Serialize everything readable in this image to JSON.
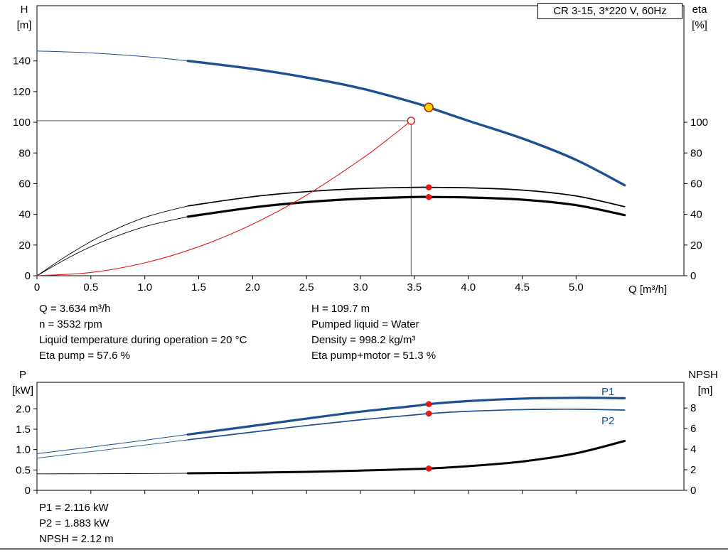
{
  "header": {
    "title_box": "CR 3-15, 3*220 V, 60Hz"
  },
  "axes_labels": {
    "h_top": "H",
    "h_unit": "[m]",
    "eta_top": "eta",
    "eta_unit": "[%]",
    "q_label": "Q [m³/h]",
    "p_top": "P",
    "p_unit": "[kW]",
    "npsh_top": "NPSH",
    "npsh_unit": "[m]"
  },
  "series_labels": {
    "p1": "P1",
    "p2": "P2"
  },
  "colors": {
    "curve_blue": "#1d4f91",
    "red": "#e01818",
    "black": "#000000",
    "yellow": "#ffd300"
  },
  "annotations": {
    "left": [
      "Q = 3.634 m³/h",
      "n = 3532 rpm",
      "Liquid temperature during operation = 20 °C",
      "Eta pump = 57.6 %"
    ],
    "right": [
      "H = 109.7 m",
      "Pumped liquid = Water",
      "Density = 998.2 kg/m³",
      "Eta pump+motor = 51.3 %"
    ],
    "bottom": [
      "P1 = 2.116 kW",
      "P2 = 1.883 kW",
      "NPSH = 2.12 m"
    ]
  },
  "chart_data": [
    {
      "type": "line",
      "name": "qh-eta-chart",
      "title": "CR 3-15, 3*220 V, 60Hz",
      "grid": false,
      "x_axis": {
        "label": "Q [m³/h]",
        "min": 0,
        "max": 6,
        "show_tick_labels": true,
        "ticks": [
          [
            0,
            "0"
          ],
          [
            0.5,
            "0.5"
          ],
          [
            1,
            "1.0"
          ],
          [
            1.5,
            "1.5"
          ],
          [
            2,
            "2.0"
          ],
          [
            2.5,
            "2.5"
          ],
          [
            3,
            "3.0"
          ],
          [
            3.5,
            "3.5"
          ],
          [
            4,
            "4.0"
          ],
          [
            4.5,
            "4.5"
          ],
          [
            5,
            "5.0"
          ]
        ]
      },
      "y_left": {
        "label": "H [m]",
        "min": 0,
        "max": 176,
        "ticks": [
          [
            0,
            "0"
          ],
          [
            20,
            "20"
          ],
          [
            40,
            "40"
          ],
          [
            60,
            "60"
          ],
          [
            80,
            "80"
          ],
          [
            100,
            "100"
          ],
          [
            120,
            "120"
          ],
          [
            140,
            "140"
          ]
        ]
      },
      "y_right": {
        "label": "eta [%]",
        "min": 0,
        "max": 176,
        "ticks": [
          [
            0,
            "0"
          ],
          [
            20,
            "20"
          ],
          [
            40,
            "40"
          ],
          [
            60,
            "60"
          ],
          [
            80,
            "80"
          ],
          [
            100,
            "100"
          ]
        ]
      },
      "series": [
        {
          "id": "h-q-curve",
          "name": "H pump curve",
          "axis": "left",
          "color": "#1d4f91",
          "width": 3.4,
          "thin_until": 1.4,
          "thin_width": 1,
          "points": [
            [
              0,
              146.5
            ],
            [
              0.5,
              145.2
            ],
            [
              1.0,
              142.8
            ],
            [
              1.4,
              140
            ],
            [
              2.0,
              134.8
            ],
            [
              2.5,
              129.2
            ],
            [
              3.0,
              122.2
            ],
            [
              3.5,
              112.8
            ],
            [
              3.634,
              109.7
            ],
            [
              4.0,
              101
            ],
            [
              4.5,
              89.5
            ],
            [
              5.0,
              75.5
            ],
            [
              5.45,
              59
            ]
          ]
        },
        {
          "id": "eta-pump-curve",
          "name": "Eta pump",
          "axis": "right",
          "color": "#000000",
          "width": 1.7,
          "thin_until": 1.4,
          "thin_width": 0.9,
          "points": [
            [
              0,
              0
            ],
            [
              0.3,
              14
            ],
            [
              0.6,
              26
            ],
            [
              1.0,
              38
            ],
            [
              1.4,
              45.5
            ],
            [
              2.0,
              51.5
            ],
            [
              2.5,
              54.8
            ],
            [
              3.0,
              56.8
            ],
            [
              3.5,
              57.6
            ],
            [
              3.634,
              57.6
            ],
            [
              4.0,
              57.3
            ],
            [
              4.5,
              55.8
            ],
            [
              5.0,
              52
            ],
            [
              5.45,
              45
            ]
          ]
        },
        {
          "id": "eta-pump-motor-curve",
          "name": "Eta pump+motor",
          "axis": "right",
          "color": "#000000",
          "width": 3.2,
          "thin_until": 1.4,
          "thin_width": 0.9,
          "points": [
            [
              0,
              0
            ],
            [
              0.3,
              12
            ],
            [
              0.6,
              22
            ],
            [
              1.0,
              32
            ],
            [
              1.4,
              38.5
            ],
            [
              2.0,
              44.5
            ],
            [
              2.5,
              48
            ],
            [
              3.0,
              50.2
            ],
            [
              3.5,
              51.3
            ],
            [
              3.634,
              51.3
            ],
            [
              4.0,
              51
            ],
            [
              4.5,
              49.6
            ],
            [
              5.0,
              46
            ],
            [
              5.45,
              39.5
            ]
          ]
        },
        {
          "id": "system-curve",
          "name": "Duty reference curve",
          "axis": "left",
          "color": "#e01818",
          "width": 1.1,
          "points": [
            [
              0,
              0
            ],
            [
              0.5,
              2.1
            ],
            [
              1.0,
              8.4
            ],
            [
              1.5,
              18.9
            ],
            [
              2.0,
              33.6
            ],
            [
              2.5,
              52.5
            ],
            [
              3.0,
              75.6
            ],
            [
              3.25,
              88.7
            ],
            [
              3.47,
              101
            ]
          ]
        }
      ],
      "reference_lines": [
        {
          "q": 3.47,
          "v": 101,
          "axis": "left"
        }
      ],
      "markers": [
        {
          "id": "duty-reference-point",
          "q": 3.47,
          "v": 101,
          "axis": "left",
          "r": 5,
          "fill": "#ffffff",
          "stroke": "#e01818",
          "stroke_width": 1.4
        },
        {
          "id": "operating-point",
          "q": 3.634,
          "v": 109.7,
          "axis": "left",
          "r": 6,
          "fill": "#ffd300",
          "stroke": "#c03000",
          "stroke_width": 1.6
        },
        {
          "id": "eta-pump-point",
          "q": 3.634,
          "v": 57.6,
          "axis": "right",
          "r": 4.3,
          "fill": "#e01818"
        },
        {
          "id": "eta-pump-motor-point",
          "q": 3.634,
          "v": 51.3,
          "axis": "right",
          "r": 4.3,
          "fill": "#e01818"
        }
      ]
    },
    {
      "type": "line",
      "name": "power-npsh-chart",
      "grid": false,
      "x_axis": {
        "label": "",
        "min": 0,
        "max": 6,
        "show_tick_labels": false,
        "ticks": [
          [
            0,
            "0"
          ],
          [
            0.5,
            "0.5"
          ],
          [
            1,
            "1.0"
          ],
          [
            1.5,
            "1.5"
          ],
          [
            2,
            "2.0"
          ],
          [
            2.5,
            "2.5"
          ],
          [
            3,
            "3.0"
          ],
          [
            3.5,
            "3.5"
          ],
          [
            4,
            "4.0"
          ],
          [
            4.5,
            "4.5"
          ],
          [
            5,
            "5.0"
          ]
        ]
      },
      "y_left": {
        "label": "P [kW]",
        "min": 0,
        "max": 2.65,
        "ticks": [
          [
            0,
            "0"
          ],
          [
            0.5,
            "0.5"
          ],
          [
            1,
            "1.0"
          ],
          [
            1.5,
            "1.5"
          ],
          [
            2,
            "2.0"
          ]
        ]
      },
      "y_right": {
        "label": "NPSH [m]",
        "min": 0,
        "max": 10.5,
        "ticks": [
          [
            0,
            "0"
          ],
          [
            2,
            "2"
          ],
          [
            4,
            "4"
          ],
          [
            6,
            "6"
          ],
          [
            8,
            "8"
          ]
        ]
      },
      "series": [
        {
          "id": "p1-curve",
          "name": "P1",
          "axis": "left",
          "color": "#1d4f91",
          "width": 3.2,
          "thin_until": 1.4,
          "thin_width": 1,
          "points": [
            [
              0,
              0.9
            ],
            [
              0.5,
              1.06
            ],
            [
              1.0,
              1.23
            ],
            [
              1.4,
              1.37
            ],
            [
              2.0,
              1.58
            ],
            [
              2.5,
              1.76
            ],
            [
              3.0,
              1.93
            ],
            [
              3.5,
              2.07
            ],
            [
              3.634,
              2.116
            ],
            [
              4.0,
              2.19
            ],
            [
              4.5,
              2.25
            ],
            [
              5.0,
              2.27
            ],
            [
              5.45,
              2.26
            ]
          ]
        },
        {
          "id": "p2-curve",
          "name": "P2",
          "axis": "left",
          "color": "#1d4f91",
          "width": 1.7,
          "thin_until": 1.4,
          "thin_width": 0.9,
          "points": [
            [
              0,
              0.79
            ],
            [
              0.5,
              0.95
            ],
            [
              1.0,
              1.11
            ],
            [
              1.4,
              1.24
            ],
            [
              2.0,
              1.43
            ],
            [
              2.5,
              1.59
            ],
            [
              3.0,
              1.73
            ],
            [
              3.5,
              1.85
            ],
            [
              3.634,
              1.883
            ],
            [
              4.0,
              1.94
            ],
            [
              4.5,
              1.98
            ],
            [
              5.0,
              1.99
            ],
            [
              5.45,
              1.97
            ]
          ]
        },
        {
          "id": "npsh-curve",
          "name": "NPSH",
          "axis": "right",
          "color": "#000000",
          "width": 3,
          "thin_until": 1.4,
          "thin_width": 0.9,
          "points": [
            [
              0,
              1.6
            ],
            [
              0.5,
              1.61
            ],
            [
              1.0,
              1.63
            ],
            [
              1.4,
              1.66
            ],
            [
              2.0,
              1.72
            ],
            [
              2.5,
              1.8
            ],
            [
              3.0,
              1.92
            ],
            [
              3.5,
              2.07
            ],
            [
              3.634,
              2.12
            ],
            [
              4.0,
              2.35
            ],
            [
              4.5,
              2.8
            ],
            [
              5.0,
              3.6
            ],
            [
              5.45,
              4.8
            ]
          ]
        }
      ],
      "markers": [
        {
          "id": "p1-point",
          "q": 3.634,
          "v": 2.116,
          "axis": "left",
          "r": 4.3,
          "fill": "#e01818"
        },
        {
          "id": "p2-point",
          "q": 3.634,
          "v": 1.883,
          "axis": "left",
          "r": 4.3,
          "fill": "#e01818"
        },
        {
          "id": "npsh-point",
          "q": 3.634,
          "v": 2.12,
          "axis": "right",
          "r": 4.3,
          "fill": "#e01818"
        }
      ]
    }
  ]
}
